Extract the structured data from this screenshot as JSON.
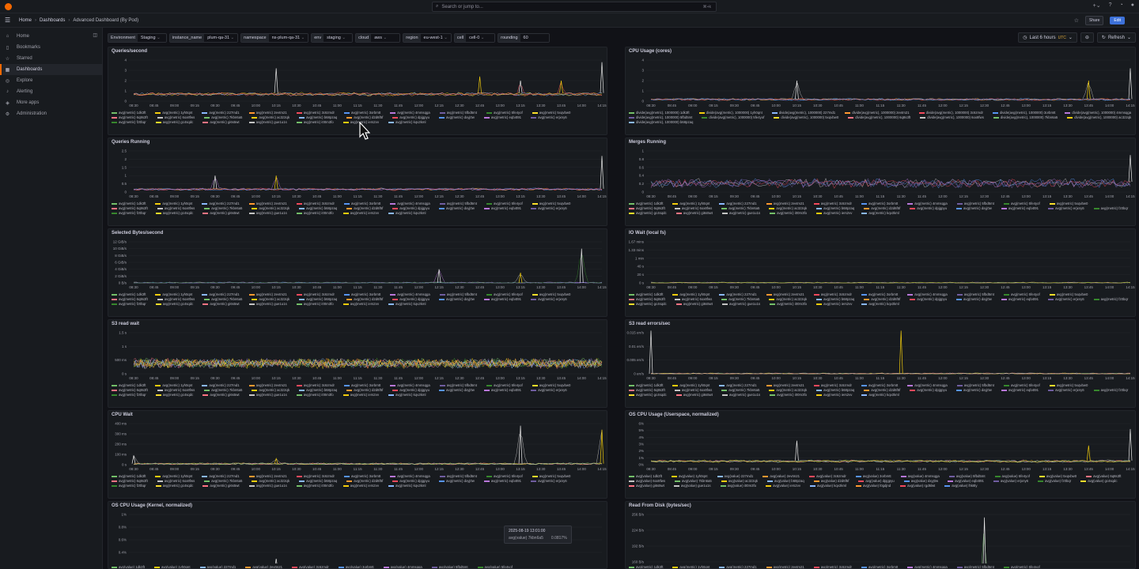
{
  "topbar": {
    "search_placeholder": "Search or jump to...",
    "search_shortcut": "⌘+k",
    "icons": [
      "plus-icon",
      "help-icon",
      "news-icon",
      "avatar"
    ]
  },
  "breadcrumb": [
    "Home",
    "Dashboards",
    "Advanced Dashboard (By Pod)"
  ],
  "toolbar": {
    "share_label": "Share",
    "edit_label": "Edit"
  },
  "sidebar": {
    "items": [
      {
        "label": "Home",
        "icon": "home-icon"
      },
      {
        "label": "Bookmarks",
        "icon": "bookmark-icon"
      },
      {
        "label": "Starred",
        "icon": "star-icon"
      },
      {
        "label": "Dashboards",
        "icon": "apps-icon",
        "active": true
      },
      {
        "label": "Explore",
        "icon": "compass-icon"
      },
      {
        "label": "Alerting",
        "icon": "bell-icon"
      },
      {
        "label": "More apps",
        "icon": "cube-icon"
      },
      {
        "label": "Administration",
        "icon": "cog-icon"
      }
    ]
  },
  "variables": [
    {
      "label": "Environment",
      "value": "Staging"
    },
    {
      "label": "instance_name",
      "value": "plum-qa-31"
    },
    {
      "label": "namespace",
      "value": "ns-plum-qa-31"
    },
    {
      "label": "env",
      "value": "staging"
    },
    {
      "label": "cloud",
      "value": "aws"
    },
    {
      "label": "region",
      "value": "eu-west-1"
    },
    {
      "label": "cell",
      "value": "cell-0"
    },
    {
      "label": "rounding",
      "value": "60"
    }
  ],
  "time_picker": {
    "range": "Last 6 hours",
    "tz": "UTC",
    "refresh": "Refresh"
  },
  "x_ticks": [
    "08:30",
    "08:45",
    "09:00",
    "09:15",
    "09:30",
    "09:45",
    "10:00",
    "10:15",
    "10:30",
    "10:45",
    "11:00",
    "11:15",
    "11:30",
    "11:45",
    "12:00",
    "12:15",
    "12:30",
    "12:45",
    "13:00",
    "13:15",
    "13:30",
    "13:45",
    "14:00",
    "14:15"
  ],
  "colors": [
    "#73bf69",
    "#f2cc0c",
    "#8ab8ff",
    "#ff9830",
    "#f2495c",
    "#5794f2",
    "#b877d9",
    "#705da0",
    "#37872d",
    "#fade2a",
    "#ff7383",
    "#c4c4c4"
  ],
  "panels": [
    {
      "title": "Queries/second",
      "y_ticks": [
        "4",
        "3",
        "2",
        "1",
        "0"
      ],
      "legend": [
        "avg(metric) 1dk3ft",
        "avg(metric) 1yh0qnt",
        "avg(metric) 227md1",
        "avg(metric) 2evtm21",
        "avg(metric) 3c6zmdr",
        "avg(metric) 3orbmtt",
        "avg(metric) 4mmsqga",
        "avg(metric) 5fbd5mt",
        "avg(metric) 5fe4yof",
        "avg(metric) 5xqvbw0",
        "avg(metric) 6q8s3ft",
        "avg(metric) 6ox8fws",
        "avg(metric) 7kbn6a5",
        "avg(metric) ac3z2qk",
        "avg(metric) b68pzaq",
        "avg(metric) d2d6f5f",
        "avg(metric) dpjgpyu",
        "avg(metric) dxyj0w",
        "avg(metric) eqb4t91",
        "avg(metric) erjxny6",
        "avg(metric) fz0bqr",
        "avg(metric) gc4sqdc",
        "avg(metric) gi6s5wt",
        "avg(metric) gue1u1s",
        "avg(metric) i00m3fo",
        "avg(metric) iers2vv",
        "avg(metric) kqv2kml"
      ],
      "chart_data": {
        "type": "line",
        "ylim": [
          0,
          4
        ],
        "spikes": [
          {
            "x": "10:15",
            "y": 3.2
          },
          {
            "x": "12:45",
            "y": 2.4
          },
          {
            "x": "13:15",
            "y": 2.0
          },
          {
            "x": "13:45",
            "y": 2.0
          },
          {
            "x": "14:15",
            "y": 3.8
          }
        ],
        "baseline": 0.8
      }
    },
    {
      "title": "CPU Usage (cores)",
      "y_ticks": [
        "4",
        "3",
        "2",
        "1",
        "0"
      ],
      "legend": [
        "divide(avg(metric), 1000000) 1dk3ft",
        "divide(avg(metric), 1000000) 1yh0qnt",
        "divide(avg(metric), 1000000) 227md1",
        "divide(avg(metric), 1000000) 2evtm21",
        "divide(avg(metric), 1000000) 3c6zmdr",
        "divide(avg(metric), 1000000) 3orbmtt",
        "divide(avg(metric), 1000000) 4mmsqga",
        "divide(avg(metric), 1000000) 5fbd5mt",
        "divide(avg(metric), 1000000) 5fe4yof",
        "divide(avg(metric), 1000000) 5xqvbw0",
        "divide(avg(metric), 1000000) 6q8s3ft",
        "divide(avg(metric), 1000000) 6ox8fws",
        "divide(avg(metric), 1000000) 7kbn6a5",
        "divide(avg(metric), 1000000) ac3z2qk",
        "divide(avg(metric), 1000000) b68pzaq"
      ],
      "chart_data": {
        "type": "line",
        "ylim": [
          0,
          4
        ],
        "spikes": [
          {
            "x": "10:15",
            "y": 2.0
          },
          {
            "x": "13:45",
            "y": 2.0
          },
          {
            "x": "14:15",
            "y": 3.2
          }
        ],
        "baseline": 0.2
      }
    },
    {
      "title": "Queries Running",
      "y_ticks": [
        "2.5",
        "2",
        "1.5",
        "1",
        "0.5",
        "0"
      ],
      "legend": [
        "avg(metric) 1dk3ft",
        "avg(metric) 1yh0qnt",
        "avg(metric) 227md1",
        "avg(metric) 2evtm21",
        "avg(metric) 3c6zmdr",
        "avg(metric) 3orbmtt",
        "avg(metric) 4mmsqga",
        "avg(metric) 5fbd5mt",
        "avg(metric) 5fe4yof",
        "avg(metric) 5xqvbw0",
        "avg(metric) 6q8s3ft",
        "avg(metric) 6ox8fws",
        "avg(metric) 7kbn6a5",
        "avg(metric) ac3z2qk",
        "avg(metric) b68pzaq",
        "avg(metric) d2d6f5f",
        "avg(metric) dpjgpyu",
        "avg(metric) dxyj0w",
        "avg(metric) eqb4t91",
        "avg(metric) erjxny6",
        "avg(metric) fz0bqr",
        "avg(metric) gc4sqdc",
        "avg(metric) gi6s5wt",
        "avg(metric) gue1u1s",
        "avg(metric) i00m3fo",
        "avg(metric) iers2vv",
        "avg(metric) kqv2kml"
      ],
      "chart_data": {
        "type": "line",
        "ylim": [
          0,
          2.5
        ],
        "spikes": [
          {
            "x": "09:30",
            "y": 1.0
          },
          {
            "x": "10:15",
            "y": 1.0
          },
          {
            "x": "14:15",
            "y": 2.2
          }
        ],
        "baseline": 0.2
      }
    },
    {
      "title": "Merges Running",
      "y_ticks": [
        "1",
        "0.8",
        "0.6",
        "0.4",
        "0.2",
        "0"
      ],
      "legend": [
        "avg(metric) 1dk3ft",
        "avg(metric) 1yh0qnt",
        "avg(metric) 227md1",
        "avg(metric) 2evtm21",
        "avg(metric) 3c6zmdr",
        "avg(metric) 3orbmtt",
        "avg(metric) 4mmsqga",
        "avg(metric) 5fbd5mt",
        "avg(metric) 5fe4yof",
        "avg(metric) 5xqvbw0",
        "avg(metric) 6q8s3ft",
        "avg(metric) 6ox8fws",
        "avg(metric) 7kbn6a5",
        "avg(metric) ac3z2qk",
        "avg(metric) b68pzaq",
        "avg(metric) d2d6f5f",
        "avg(metric) dpjgpyu",
        "avg(metric) dxyj0w",
        "avg(metric) eqb4t91",
        "avg(metric) erjxny6",
        "avg(metric) fz0bqr",
        "avg(metric) gc4sqdc",
        "avg(metric) gi6s5wt",
        "avg(metric) gue1u1s",
        "avg(metric) i00m3fo",
        "avg(metric) iers2vv",
        "avg(metric) kqv2kml"
      ],
      "chart_data": {
        "type": "line",
        "ylim": [
          0,
          1
        ],
        "spikes": [
          {
            "x": "14:15",
            "y": 0.9
          }
        ],
        "baseline": 0.25,
        "noisy": true
      }
    },
    {
      "title": "Selected Bytes/second",
      "y_ticks": [
        "12 GiB/s",
        "10 GiB/s",
        "8 GiB/s",
        "6 GiB/s",
        "4 GiB/s",
        "2 GiB/s",
        "0 B/s"
      ],
      "legend": [
        "avg(metric) 1dk3ft",
        "avg(metric) 1yh0qnt",
        "avg(metric) 227md1",
        "avg(metric) 2evtm21",
        "avg(metric) 3c6zmdr",
        "avg(metric) 3orbmtt",
        "avg(metric) 4mmsqga",
        "avg(metric) 5fbd5mt",
        "avg(metric) 5fe4yof",
        "avg(metric) 5xqvbw0",
        "avg(metric) 6q8s3ft",
        "avg(metric) 6ox8fws",
        "avg(metric) 7kbn6a5",
        "avg(metric) ac3z2qk",
        "avg(metric) b68pzaq",
        "avg(metric) d2d6f5f",
        "avg(metric) dpjgpyu",
        "avg(metric) dxyj0w",
        "avg(metric) eqb4t91",
        "avg(metric) erjxny6",
        "avg(metric) fz0bqr",
        "avg(metric) gc4sqdc",
        "avg(metric) gi6s5wt",
        "avg(metric) gue1u1s",
        "avg(metric) i00m3fo",
        "avg(metric) iers2vv",
        "avg(metric) kqv2kml"
      ],
      "chart_data": {
        "type": "line",
        "ylim": [
          0,
          12
        ],
        "spikes": [
          {
            "x": "12:15",
            "y": 4
          },
          {
            "x": "13:15",
            "y": 3
          },
          {
            "x": "14:00",
            "y": 10
          }
        ],
        "baseline": 0
      }
    },
    {
      "title": "IO Wait (local fs)",
      "y_ticks": [
        "1.67 mins",
        "1.33 mins",
        "1 min",
        "40 s",
        "20 s",
        "0 s"
      ],
      "legend": [
        "avg(metric) 1dk3ft",
        "avg(metric) 1yh0qnt",
        "avg(metric) 227md1",
        "avg(metric) 2evtm21",
        "avg(metric) 3c6zmdr",
        "avg(metric) 3orbmtt",
        "avg(metric) 4mmsqga",
        "avg(metric) 5fbd5mt",
        "avg(metric) 5fe4yof",
        "avg(metric) 5xqvbw0",
        "avg(metric) 6q8s3ft",
        "avg(metric) 6ox8fws",
        "avg(metric) 7kbn6a5",
        "avg(metric) ac3z2qk",
        "avg(metric) b68pzaq",
        "avg(metric) d2d6f5f",
        "avg(metric) dpjgpyu",
        "avg(metric) dxyj0w",
        "avg(metric) eqb4t91",
        "avg(metric) erjxny6",
        "avg(metric) fz0bqr",
        "avg(metric) gc4sqdc",
        "avg(metric) gi6s5wt",
        "avg(metric) gue1u1s",
        "avg(metric) i00m3fo",
        "avg(metric) iers2vv",
        "avg(metric) kqv2kml"
      ],
      "chart_data": {
        "type": "line",
        "ylim": [
          0,
          100
        ],
        "spikes": [],
        "baseline": 0
      }
    },
    {
      "title": "S3 read wait",
      "y_ticks": [
        "1.5 s",
        "1 s",
        "500 ms",
        "0 s"
      ],
      "legend": [
        "avg(metric) 1dk3ft",
        "avg(metric) 1yh0qnt",
        "avg(metric) 227md1",
        "avg(metric) 2evtm21",
        "avg(metric) 3c6zmdr",
        "avg(metric) 3orbmtt",
        "avg(metric) 4mmsqga",
        "avg(metric) 5fbd5mt",
        "avg(metric) 5fe4yof",
        "avg(metric) 5xqvbw0",
        "avg(metric) 6q8s3ft",
        "avg(metric) 6ox8fws",
        "avg(metric) 7kbn6a5",
        "avg(metric) ac3z2qk",
        "avg(metric) b68pzaq",
        "avg(metric) d2d6f5f",
        "avg(metric) dpjgpyu",
        "avg(metric) dxyj0w",
        "avg(metric) eqb4t91",
        "avg(metric) erjxny6",
        "avg(metric) fz0bqr",
        "avg(metric) gc4sqdc",
        "avg(metric) gi6s5wt",
        "avg(metric) gue1u1s",
        "avg(metric) i00m3fo",
        "avg(metric) iers2vv",
        "avg(metric) kqv2kml"
      ],
      "chart_data": {
        "type": "line",
        "ylim": [
          0,
          1.5
        ],
        "spikes": [],
        "baseline": 0.45,
        "noisy": true,
        "dense": true
      }
    },
    {
      "title": "S3 read errors/sec",
      "y_ticks": [
        "0.015 err/s",
        "0.01 err/s",
        "0.005 err/s",
        "0 err/s"
      ],
      "legend": [
        "avg(metric) 1dk3ft",
        "avg(metric) 1yh0qnt",
        "avg(metric) 227md1",
        "avg(metric) 2evtm21",
        "avg(metric) 3c6zmdr",
        "avg(metric) 3orbmtt",
        "avg(metric) 4mmsqga",
        "avg(metric) 5fbd5mt",
        "avg(metric) 5fe4yof",
        "avg(metric) 5xqvbw0",
        "avg(metric) 6q8s3ft",
        "avg(metric) 6ox8fws",
        "avg(metric) 7kbn6a5",
        "avg(metric) ac3z2qk",
        "avg(metric) b68pzaq",
        "avg(metric) d2d6f5f",
        "avg(metric) dpjgpyu",
        "avg(metric) dxyj0w",
        "avg(metric) eqb4t91",
        "avg(metric) erjxny6",
        "avg(metric) fz0bqr",
        "avg(metric) gc4sqdc",
        "avg(metric) gi6s5wt",
        "avg(metric) gue1u1s",
        "avg(metric) i00m3fo",
        "avg(metric) iers2vv",
        "avg(metric) kqv2kml"
      ],
      "chart_data": {
        "type": "line",
        "ylim": [
          0,
          0.015
        ],
        "spikes": [
          {
            "x": "08:30",
            "y": 0.016
          },
          {
            "x": "11:30",
            "y": 0.016
          }
        ],
        "baseline": 0
      }
    },
    {
      "title": "CPU Wait",
      "y_ticks": [
        "400 ms",
        "300 ms",
        "200 ms",
        "100 ms",
        "0 s"
      ],
      "legend": [
        "avg(metric) 1dk3ft",
        "avg(metric) 1yh0qnt",
        "avg(metric) 227md1",
        "avg(metric) 2evtm21",
        "avg(metric) 3c6zmdr",
        "avg(metric) 3orbmtt",
        "avg(metric) 4mmsqga",
        "avg(metric) 5fbd5mt",
        "avg(metric) 5fe4yof",
        "avg(metric) 5xqvbw0",
        "avg(metric) 6q8s3ft",
        "avg(metric) 6ox8fws",
        "avg(metric) 7kbn6a5",
        "avg(metric) ac3z2qk",
        "avg(metric) b68pzaq",
        "avg(metric) d2d6f5f",
        "avg(metric) dpjgpyu",
        "avg(metric) dxyj0w",
        "avg(metric) eqb4t91",
        "avg(metric) erjxny6",
        "avg(metric) fz0bqr",
        "avg(metric) gc4sqdc",
        "avg(metric) gi6s5wt",
        "avg(metric) gue1u1s",
        "avg(metric) i00m3fo",
        "avg(metric) iers2vv",
        "avg(metric) kqv2kml"
      ],
      "chart_data": {
        "type": "line",
        "ylim": [
          0,
          400
        ],
        "spikes": [
          {
            "x": "08:30",
            "y": 90
          },
          {
            "x": "10:15",
            "y": 60
          },
          {
            "x": "13:15",
            "y": 380
          },
          {
            "x": "14:15",
            "y": 340
          }
        ],
        "baseline": 10
      }
    },
    {
      "title": "OS CPU Usage (Userspace, normalized)",
      "y_ticks": [
        "6%",
        "5%",
        "4%",
        "3%",
        "2%",
        "1%",
        "0%"
      ],
      "legend": [
        "avg(value) 1dk3ft",
        "avg(value) 1yh0qnt",
        "avg(value) 227md1",
        "avg(value) 2evtm21",
        "avg(value) 3c6zmdr",
        "avg(value) 3orbmtt",
        "avg(value) 4mmsqga",
        "avg(value) 5fbd5mt",
        "avg(value) 5fe4yof",
        "avg(value) 5xqvbw0",
        "avg(value) 6q8s3ft",
        "avg(value) 6ox8fws",
        "avg(value) 7kbn6a5",
        "avg(value) ac3z2qk",
        "avg(value) b68pzaq",
        "avg(value) d2d6f5f",
        "avg(value) dpjgpyu",
        "avg(value) dxyj0w",
        "avg(value) eqb4t91",
        "avg(value) erjxny6",
        "avg(value) fz0bqr",
        "avg(value) gc4sqdc",
        "avg(value) gi6s5wt",
        "avg(value) gue1u1s",
        "avg(value) i00m3fo",
        "avg(value) iers2vv",
        "avg(value) kqv2kml",
        "avg(value) l0gdjnd",
        "avg(value) rgd6lwt",
        "avg(value) lhk8ly"
      ],
      "chart_data": {
        "type": "line",
        "ylim": [
          0,
          6
        ],
        "spikes": [
          {
            "x": "10:15",
            "y": 3.5
          },
          {
            "x": "13:45",
            "y": 2.8
          },
          {
            "x": "14:15",
            "y": 5.2
          }
        ],
        "baseline": 0.6
      }
    },
    {
      "title": "OS CPU Usage (Kernel, normalized)",
      "y_ticks": [
        "1%",
        "0.8%",
        "0.6%",
        "0.4%",
        "0.2%",
        "0%"
      ],
      "legend": [
        "avg(value) 1dk3ft",
        "avg(value) 1yh0qnt",
        "avg(value) 227md1",
        "avg(value) 2evtm21",
        "avg(value) 3c6zmdr",
        "avg(value) 3orbmtt",
        "avg(value) 4mmsqga",
        "avg(value) 5fbd5mt",
        "avg(value) 5fe4yof"
      ],
      "chart_data": {
        "type": "line",
        "ylim": [
          0,
          1
        ],
        "spikes": [
          {
            "x": "10:15",
            "y": 0.3
          }
        ],
        "baseline": 0.12,
        "noisy": true
      },
      "tooltip": {
        "time": "2025-08-19 13:01:00",
        "series": "avg(value) 7kbn6a5",
        "value": "0.0817%"
      }
    },
    {
      "title": "Read From Disk (bytes/sec)",
      "y_ticks": [
        "256 B/s",
        "224 B/s",
        "192 B/s",
        "160 B/s",
        "128 B/s"
      ],
      "legend": [
        "avg(metric) 1dk3ft",
        "avg(metric) 1yh0qnt",
        "avg(metric) 227md1",
        "avg(metric) 2evtm21",
        "avg(metric) 3c6zmdr",
        "avg(metric) 3orbmtt",
        "avg(metric) 4mmsqga",
        "avg(metric) 5fbd5mt",
        "avg(metric) 5fe4yof"
      ],
      "chart_data": {
        "type": "line",
        "ylim": [
          128,
          256
        ],
        "spikes": [
          {
            "x": "12:30",
            "y": 250
          }
        ],
        "baseline": 128
      }
    }
  ]
}
